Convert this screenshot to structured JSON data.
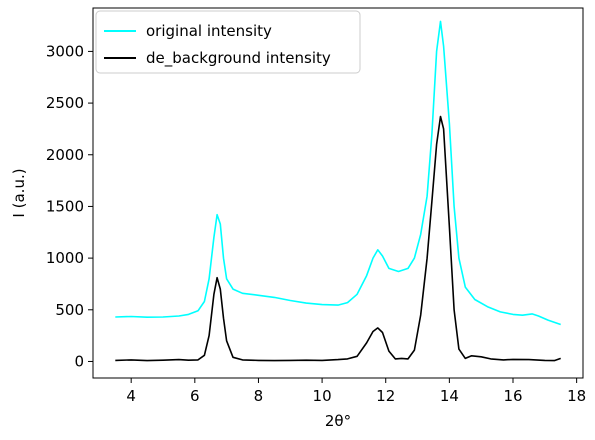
{
  "chart_data": {
    "type": "line",
    "title": "",
    "xlabel": "2θ°",
    "ylabel": "I (a.u.)",
    "xlim": [
      2.8,
      18.2
    ],
    "ylim": [
      -160,
      3420
    ],
    "xticks": [
      4,
      6,
      8,
      10,
      12,
      14,
      16,
      18
    ],
    "yticks": [
      0,
      500,
      1000,
      1500,
      2000,
      2500,
      3000
    ],
    "grid": false,
    "legend_position": "top-left",
    "series": [
      {
        "name": "original intensity",
        "color": "#00ffff",
        "points": [
          [
            3.5,
            430
          ],
          [
            4.0,
            435
          ],
          [
            4.5,
            428
          ],
          [
            5.0,
            430
          ],
          [
            5.5,
            440
          ],
          [
            5.8,
            455
          ],
          [
            6.1,
            490
          ],
          [
            6.3,
            580
          ],
          [
            6.45,
            800
          ],
          [
            6.6,
            1200
          ],
          [
            6.7,
            1420
          ],
          [
            6.8,
            1330
          ],
          [
            6.9,
            1000
          ],
          [
            7.0,
            800
          ],
          [
            7.2,
            700
          ],
          [
            7.5,
            660
          ],
          [
            8.0,
            640
          ],
          [
            8.5,
            620
          ],
          [
            9.0,
            590
          ],
          [
            9.5,
            565
          ],
          [
            10.0,
            550
          ],
          [
            10.5,
            545
          ],
          [
            10.8,
            570
          ],
          [
            11.1,
            650
          ],
          [
            11.4,
            830
          ],
          [
            11.6,
            1000
          ],
          [
            11.75,
            1080
          ],
          [
            11.9,
            1020
          ],
          [
            12.1,
            900
          ],
          [
            12.4,
            870
          ],
          [
            12.7,
            900
          ],
          [
            12.9,
            1000
          ],
          [
            13.1,
            1230
          ],
          [
            13.3,
            1600
          ],
          [
            13.45,
            2200
          ],
          [
            13.6,
            3000
          ],
          [
            13.72,
            3290
          ],
          [
            13.82,
            3050
          ],
          [
            14.0,
            2300
          ],
          [
            14.15,
            1500
          ],
          [
            14.3,
            1000
          ],
          [
            14.5,
            720
          ],
          [
            14.8,
            600
          ],
          [
            15.2,
            530
          ],
          [
            15.6,
            480
          ],
          [
            16.0,
            455
          ],
          [
            16.3,
            448
          ],
          [
            16.6,
            460
          ],
          [
            16.8,
            440
          ],
          [
            17.1,
            400
          ],
          [
            17.5,
            358
          ]
        ]
      },
      {
        "name": "de_background intensity",
        "color": "#000000",
        "points": [
          [
            3.5,
            10
          ],
          [
            4.0,
            15
          ],
          [
            4.5,
            8
          ],
          [
            5.0,
            12
          ],
          [
            5.5,
            18
          ],
          [
            5.8,
            12
          ],
          [
            6.1,
            15
          ],
          [
            6.3,
            60
          ],
          [
            6.45,
            250
          ],
          [
            6.6,
            650
          ],
          [
            6.7,
            810
          ],
          [
            6.8,
            700
          ],
          [
            6.9,
            420
          ],
          [
            7.0,
            200
          ],
          [
            7.2,
            40
          ],
          [
            7.5,
            15
          ],
          [
            8.0,
            10
          ],
          [
            8.5,
            8
          ],
          [
            9.0,
            10
          ],
          [
            9.5,
            12
          ],
          [
            10.0,
            10
          ],
          [
            10.5,
            18
          ],
          [
            10.8,
            25
          ],
          [
            11.1,
            50
          ],
          [
            11.4,
            180
          ],
          [
            11.6,
            290
          ],
          [
            11.75,
            325
          ],
          [
            11.9,
            280
          ],
          [
            12.1,
            100
          ],
          [
            12.3,
            25
          ],
          [
            12.5,
            30
          ],
          [
            12.7,
            25
          ],
          [
            12.9,
            110
          ],
          [
            13.1,
            450
          ],
          [
            13.3,
            1000
          ],
          [
            13.45,
            1550
          ],
          [
            13.6,
            2100
          ],
          [
            13.72,
            2370
          ],
          [
            13.82,
            2250
          ],
          [
            14.0,
            1300
          ],
          [
            14.15,
            500
          ],
          [
            14.3,
            120
          ],
          [
            14.5,
            30
          ],
          [
            14.7,
            55
          ],
          [
            15.0,
            45
          ],
          [
            15.3,
            25
          ],
          [
            15.7,
            15
          ],
          [
            16.0,
            20
          ],
          [
            16.5,
            18
          ],
          [
            17.0,
            10
          ],
          [
            17.3,
            8
          ],
          [
            17.5,
            30
          ]
        ]
      }
    ]
  }
}
